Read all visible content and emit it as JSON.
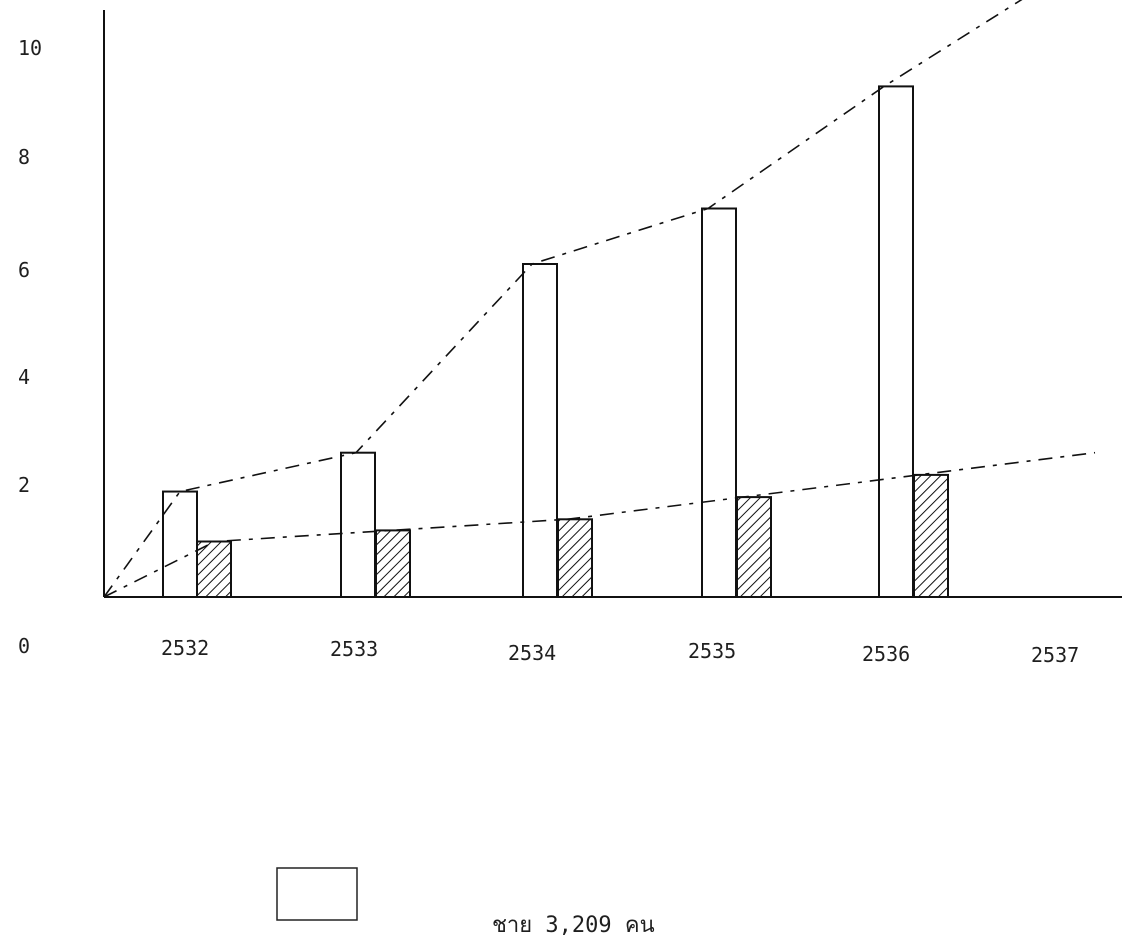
{
  "chart_data": {
    "type": "bar",
    "title": "",
    "xlabel": "",
    "ylabel": "",
    "categories": [
      "2532",
      "2533",
      "2534",
      "2535",
      "2536",
      "2537"
    ],
    "ylim": [
      0,
      10
    ],
    "y_ticks": [
      "0",
      "2",
      "4",
      "6",
      "8",
      "10"
    ],
    "grid": false,
    "series": [
      {
        "name": "ชาย 3,209 คน",
        "values": [
          1.9,
          2.6,
          6.0,
          7.0,
          9.2,
          null
        ],
        "style": "open",
        "color": "#ffffff"
      },
      {
        "values": [
          1.0,
          1.2,
          1.4,
          1.8,
          2.2,
          null
        ],
        "style": "hatched",
        "color": "#111111"
      }
    ],
    "trend_lines": [
      {
        "series_index": 0,
        "points": [
          [
            0,
            1.9
          ],
          [
            1,
            2.6
          ],
          [
            2,
            6.0
          ],
          [
            3,
            7.0
          ],
          [
            4,
            9.2
          ],
          [
            5,
            11.2
          ]
        ]
      },
      {
        "series_index": 1,
        "points": [
          [
            0,
            1.0
          ],
          [
            1,
            1.2
          ],
          [
            2,
            1.4
          ],
          [
            3,
            1.8
          ],
          [
            4,
            2.2
          ],
          [
            5,
            2.6
          ]
        ]
      }
    ],
    "legend": {
      "placement": "bottom-center",
      "entries": [
        {
          "label": "ชาย 3,209 คน",
          "style": "open"
        }
      ]
    }
  }
}
